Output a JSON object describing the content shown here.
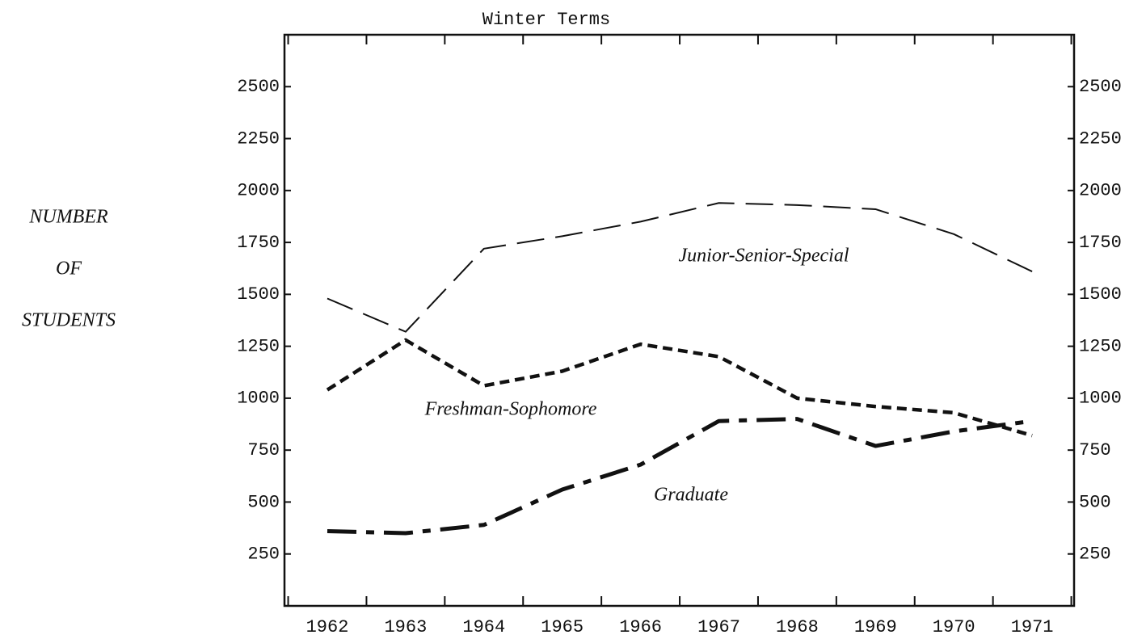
{
  "chart_data": {
    "type": "line",
    "title": "Winter Terms",
    "ylabel": [
      "NUMBER",
      "OF",
      "STUDENTS"
    ],
    "categories": [
      "1962",
      "1963",
      "1964",
      "1965",
      "1966",
      "1967",
      "1968",
      "1969",
      "1970",
      "1971"
    ],
    "series": [
      {
        "name": "Junior-Senior-Special",
        "color": "#111111",
        "values": [
          1480,
          1320,
          1720,
          1780,
          1850,
          1940,
          1930,
          1910,
          1790,
          1610
        ]
      },
      {
        "name": "Freshman-Sophomore",
        "color": "#111111",
        "values": [
          1040,
          1280,
          1060,
          1130,
          1260,
          1200,
          1000,
          960,
          930,
          820
        ]
      },
      {
        "name": "Graduate",
        "color": "#111111",
        "values": [
          360,
          350,
          390,
          560,
          680,
          890,
          900,
          770,
          840,
          890
        ]
      }
    ],
    "ylim": [
      0,
      2750
    ],
    "yticks": [
      250,
      500,
      750,
      1000,
      1250,
      1500,
      1750,
      2000,
      2250,
      2500
    ],
    "grid": false
  }
}
